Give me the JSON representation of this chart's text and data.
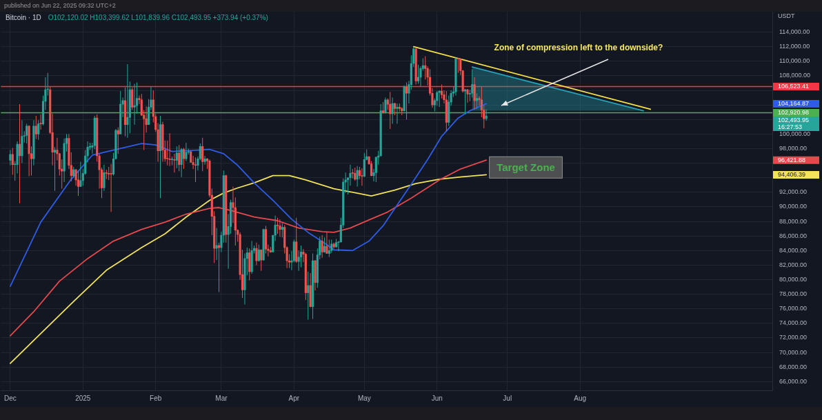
{
  "chart_data": {
    "type": "candlestick",
    "title": "Bitcoin · 1D",
    "subtitle": "O102,120.02 H103,399.62 L101,839.96 C102,493.95 +373.94 (+0.37%)",
    "ylabel": "USDT",
    "annotations": [
      "published on Jun 22, 2025 09:32 UTC+2",
      "Zone of compression left to the downside?",
      "Target Zone",
      "104,164.87",
      "96,421.88",
      "94,406.39",
      "16:27:53"
    ],
    "x": [
      "2024-12-01",
      "2024-12-02",
      "2024-12-03",
      "2024-12-04",
      "2024-12-05",
      "2024-12-06",
      "2024-12-07",
      "2024-12-08",
      "2024-12-09",
      "2024-12-10",
      "2024-12-11",
      "2024-12-12",
      "2024-12-13",
      "2024-12-14",
      "2024-12-15",
      "2024-12-16",
      "2024-12-17",
      "2024-12-18",
      "2024-12-19",
      "2024-12-20",
      "2024-12-21",
      "2024-12-22",
      "2024-12-23",
      "2024-12-24",
      "2024-12-25",
      "2024-12-26",
      "2024-12-27",
      "2024-12-28",
      "2024-12-29",
      "2024-12-30",
      "2024-12-31",
      "2025-01-01",
      "2025-01-02",
      "2025-01-03",
      "2025-01-04",
      "2025-01-05",
      "2025-01-06",
      "2025-01-07",
      "2025-01-08",
      "2025-01-09",
      "2025-01-10",
      "2025-01-11",
      "2025-01-12",
      "2025-01-13",
      "2025-01-14",
      "2025-01-15",
      "2025-01-16",
      "2025-01-17",
      "2025-01-18",
      "2025-01-19",
      "2025-01-20",
      "2025-01-21",
      "2025-01-22",
      "2025-01-23",
      "2025-01-24",
      "2025-01-25",
      "2025-01-26",
      "2025-01-27",
      "2025-01-28",
      "2025-01-29",
      "2025-01-30",
      "2025-01-31",
      "2025-02-01",
      "2025-02-02",
      "2025-02-03",
      "2025-02-04",
      "2025-02-05",
      "2025-02-06",
      "2025-02-07",
      "2025-02-08",
      "2025-02-09",
      "2025-02-10",
      "2025-02-11",
      "2025-02-12",
      "2025-02-13",
      "2025-02-14",
      "2025-02-15",
      "2025-02-16",
      "2025-02-17",
      "2025-02-18",
      "2025-02-19",
      "2025-02-20",
      "2025-02-21",
      "2025-02-22",
      "2025-02-23",
      "2025-02-24",
      "2025-02-25",
      "2025-02-26",
      "2025-02-27",
      "2025-02-28",
      "2025-03-01",
      "2025-03-02",
      "2025-03-03",
      "2025-03-04",
      "2025-03-05",
      "2025-03-06",
      "2025-03-07",
      "2025-03-08",
      "2025-03-09",
      "2025-03-10",
      "2025-03-11",
      "2025-03-12",
      "2025-03-13",
      "2025-03-14",
      "2025-03-15",
      "2025-03-16",
      "2025-03-17",
      "2025-03-18",
      "2025-03-19",
      "2025-03-20",
      "2025-03-21",
      "2025-03-22",
      "2025-03-23",
      "2025-03-24",
      "2025-03-25",
      "2025-03-26",
      "2025-03-27",
      "2025-03-28",
      "2025-03-29",
      "2025-03-30",
      "2025-03-31",
      "2025-04-01",
      "2025-04-02",
      "2025-04-03",
      "2025-04-04",
      "2025-04-05",
      "2025-04-06",
      "2025-04-07",
      "2025-04-08",
      "2025-04-09",
      "2025-04-10",
      "2025-04-11",
      "2025-04-12",
      "2025-04-13",
      "2025-04-14",
      "2025-04-15",
      "2025-04-16",
      "2025-04-17",
      "2025-04-18",
      "2025-04-19",
      "2025-04-20",
      "2025-04-21",
      "2025-04-22",
      "2025-04-23",
      "2025-04-24",
      "2025-04-25",
      "2025-04-26",
      "2025-04-27",
      "2025-04-28",
      "2025-04-29",
      "2025-04-30",
      "2025-05-01",
      "2025-05-02",
      "2025-05-03",
      "2025-05-04",
      "2025-05-05",
      "2025-05-06",
      "2025-05-07",
      "2025-05-08",
      "2025-05-09",
      "2025-05-10",
      "2025-05-11",
      "2025-05-12",
      "2025-05-13",
      "2025-05-14",
      "2025-05-15",
      "2025-05-16",
      "2025-05-17",
      "2025-05-18",
      "2025-05-19",
      "2025-05-20",
      "2025-05-21",
      "2025-05-22",
      "2025-05-23",
      "2025-05-24",
      "2025-05-25",
      "2025-05-26",
      "2025-05-27",
      "2025-05-28",
      "2025-05-29",
      "2025-05-30",
      "2025-05-31",
      "2025-06-01",
      "2025-06-02",
      "2025-06-03",
      "2025-06-04",
      "2025-06-05",
      "2025-06-06",
      "2025-06-07",
      "2025-06-08",
      "2025-06-09",
      "2025-06-10",
      "2025-06-11",
      "2025-06-12",
      "2025-06-13",
      "2025-06-14",
      "2025-06-15",
      "2025-06-16",
      "2025-06-17",
      "2025-06-18",
      "2025-06-19",
      "2025-06-20",
      "2025-06-21",
      "2025-06-22"
    ],
    "ohlc": [
      [
        96400,
        97800,
        95700,
        97200
      ],
      [
        97200,
        98100,
        94400,
        95800
      ],
      [
        95800,
        96300,
        93600,
        95800
      ],
      [
        95800,
        99000,
        94600,
        98600
      ],
      [
        98600,
        104100,
        90500,
        97000
      ],
      [
        97000,
        101900,
        96000,
        99700
      ],
      [
        99700,
        100400,
        98800,
        99800
      ],
      [
        99800,
        101400,
        98700,
        101100
      ],
      [
        101100,
        101200,
        94200,
        97300
      ],
      [
        97300,
        98300,
        94300,
        96600
      ],
      [
        96600,
        101900,
        95700,
        101100
      ],
      [
        101100,
        102500,
        99300,
        100000
      ],
      [
        100000,
        101900,
        99200,
        101400
      ],
      [
        101400,
        102700,
        100600,
        101400
      ],
      [
        101400,
        105300,
        101200,
        104500
      ],
      [
        104500,
        107800,
        103300,
        106100
      ],
      [
        106100,
        108400,
        105300,
        106100
      ],
      [
        106100,
        106500,
        100000,
        100200
      ],
      [
        100200,
        102800,
        95700,
        97500
      ],
      [
        97500,
        98200,
        92200,
        97800
      ],
      [
        97800,
        99500,
        96400,
        97300
      ],
      [
        97300,
        97400,
        94300,
        95200
      ],
      [
        95200,
        96500,
        92500,
        94900
      ],
      [
        94900,
        99400,
        93400,
        98700
      ],
      [
        98700,
        100000,
        97600,
        99400
      ],
      [
        99400,
        100000,
        95200,
        95700
      ],
      [
        95700,
        97500,
        93500,
        94300
      ],
      [
        94300,
        95500,
        94000,
        95100
      ],
      [
        95100,
        95200,
        92900,
        93700
      ],
      [
        93700,
        95000,
        91500,
        92800
      ],
      [
        92800,
        96200,
        92800,
        93600
      ],
      [
        93600,
        95200,
        92900,
        94600
      ],
      [
        94600,
        97800,
        94400,
        97000
      ],
      [
        97000,
        99000,
        96100,
        98200
      ],
      [
        98200,
        98800,
        97800,
        98200
      ],
      [
        98200,
        98800,
        97300,
        98400
      ],
      [
        98400,
        102500,
        97900,
        102200
      ],
      [
        102200,
        102700,
        96200,
        97000
      ],
      [
        97000,
        97300,
        92500,
        95100
      ],
      [
        95100,
        95400,
        91200,
        92600
      ],
      [
        92600,
        95800,
        92200,
        94700
      ],
      [
        94700,
        95100,
        93800,
        94600
      ],
      [
        94600,
        95500,
        93700,
        94500
      ],
      [
        94500,
        95900,
        89300,
        94500
      ],
      [
        94500,
        97400,
        94300,
        96600
      ],
      [
        96600,
        100700,
        96500,
        100500
      ],
      [
        100500,
        100900,
        97300,
        100000
      ],
      [
        100000,
        105900,
        100000,
        104100
      ],
      [
        104100,
        105000,
        102300,
        104600
      ],
      [
        104600,
        106400,
        99700,
        101300
      ],
      [
        101300,
        109600,
        99500,
        102300
      ],
      [
        102300,
        107200,
        100100,
        106100
      ],
      [
        106100,
        106400,
        103300,
        103700
      ],
      [
        103700,
        106900,
        101300,
        103900
      ],
      [
        103900,
        107100,
        102800,
        104900
      ],
      [
        104900,
        105300,
        104100,
        104700
      ],
      [
        104700,
        105500,
        102500,
        102600
      ],
      [
        102600,
        103300,
        97800,
        102100
      ],
      [
        102100,
        103800,
        100200,
        101300
      ],
      [
        101300,
        104800,
        101300,
        103700
      ],
      [
        103700,
        106500,
        103300,
        104700
      ],
      [
        104700,
        106000,
        101600,
        102400
      ],
      [
        102400,
        102800,
        100300,
        100600
      ],
      [
        100600,
        101500,
        96200,
        97700
      ],
      [
        97700,
        102500,
        91200,
        101300
      ],
      [
        101300,
        101700,
        96200,
        97800
      ],
      [
        97800,
        99100,
        96200,
        96600
      ],
      [
        96600,
        99100,
        95700,
        96600
      ],
      [
        96600,
        100100,
        95600,
        96500
      ],
      [
        96500,
        96900,
        95700,
        96500
      ],
      [
        96500,
        97300,
        94700,
        96400
      ],
      [
        96400,
        98300,
        95300,
        97400
      ],
      [
        97400,
        98500,
        94900,
        95800
      ],
      [
        95800,
        98100,
        94100,
        97900
      ],
      [
        97900,
        98100,
        95200,
        96600
      ],
      [
        96600,
        98800,
        96300,
        97500
      ],
      [
        97500,
        98000,
        97200,
        97600
      ],
      [
        97600,
        97700,
        96100,
        96100
      ],
      [
        96100,
        97000,
        95200,
        95800
      ],
      [
        95800,
        96800,
        93400,
        95700
      ],
      [
        95700,
        96900,
        95000,
        96600
      ],
      [
        96600,
        98700,
        96400,
        98300
      ],
      [
        98300,
        99500,
        94900,
        96200
      ],
      [
        96200,
        97000,
        95800,
        96600
      ],
      [
        96600,
        96700,
        95200,
        96300
      ],
      [
        96300,
        96500,
        91300,
        91600
      ],
      [
        91600,
        92500,
        86100,
        88700
      ],
      [
        88700,
        89400,
        82300,
        84300
      ],
      [
        84300,
        87100,
        82700,
        84700
      ],
      [
        84700,
        85100,
        78300,
        84400
      ],
      [
        84400,
        86600,
        83800,
        86100
      ],
      [
        86100,
        95000,
        85100,
        94300
      ],
      [
        94300,
        94400,
        85100,
        86200
      ],
      [
        86200,
        89000,
        81500,
        87300
      ],
      [
        87300,
        91000,
        86300,
        90600
      ],
      [
        90600,
        92800,
        87800,
        89900
      ],
      [
        89900,
        91300,
        84700,
        86800
      ],
      [
        86800,
        86900,
        85200,
        86200
      ],
      [
        86200,
        86500,
        80000,
        80700
      ],
      [
        80700,
        84100,
        77500,
        78600
      ],
      [
        78600,
        83600,
        76600,
        82900
      ],
      [
        82900,
        84400,
        80600,
        83700
      ],
      [
        83700,
        84300,
        79900,
        81100
      ],
      [
        81100,
        85300,
        80800,
        84000
      ],
      [
        84000,
        84700,
        83600,
        84300
      ],
      [
        84300,
        85100,
        82000,
        82600
      ],
      [
        82600,
        84800,
        82500,
        84100
      ],
      [
        84100,
        84100,
        81200,
        82700
      ],
      [
        82700,
        87000,
        82600,
        86900
      ],
      [
        86900,
        87400,
        83600,
        84200
      ],
      [
        84200,
        84800,
        83200,
        84000
      ],
      [
        84000,
        84500,
        83700,
        83800
      ],
      [
        83800,
        86100,
        83800,
        86100
      ],
      [
        86100,
        88800,
        85300,
        87500
      ],
      [
        87500,
        88500,
        86300,
        87400
      ],
      [
        87400,
        88300,
        85900,
        86900
      ],
      [
        86900,
        87800,
        85800,
        87200
      ],
      [
        87200,
        87500,
        83600,
        84400
      ],
      [
        84400,
        84600,
        81600,
        82600
      ],
      [
        82600,
        83500,
        81600,
        82400
      ],
      [
        82400,
        83900,
        81300,
        82600
      ],
      [
        82600,
        85500,
        82400,
        85200
      ],
      [
        85200,
        88500,
        82300,
        82500
      ],
      [
        82500,
        84000,
        81200,
        83100
      ],
      [
        83100,
        84700,
        81700,
        83800
      ],
      [
        83800,
        84200,
        82400,
        83500
      ],
      [
        83500,
        83700,
        77200,
        78200
      ],
      [
        78200,
        81100,
        74500,
        79200
      ],
      [
        79200,
        80900,
        76200,
        76300
      ],
      [
        76300,
        83600,
        74600,
        82600
      ],
      [
        82600,
        82700,
        78500,
        79600
      ],
      [
        79600,
        84300,
        78900,
        83400
      ],
      [
        83400,
        85900,
        82800,
        85300
      ],
      [
        85300,
        86100,
        83000,
        83800
      ],
      [
        83800,
        85800,
        83700,
        84600
      ],
      [
        84600,
        86500,
        83600,
        83600
      ],
      [
        83600,
        85500,
        83100,
        84000
      ],
      [
        84000,
        85500,
        83700,
        84900
      ],
      [
        84900,
        85100,
        84300,
        84500
      ],
      [
        84500,
        85600,
        84400,
        85100
      ],
      [
        85100,
        85300,
        83900,
        85200
      ],
      [
        85200,
        88500,
        85100,
        87500
      ],
      [
        87500,
        93900,
        87100,
        93400
      ],
      [
        93400,
        94700,
        91900,
        93700
      ],
      [
        93700,
        94000,
        91700,
        94000
      ],
      [
        94000,
        95800,
        92900,
        94600
      ],
      [
        94600,
        95200,
        93900,
        94600
      ],
      [
        94600,
        95400,
        93600,
        93800
      ],
      [
        93800,
        95600,
        92800,
        95000
      ],
      [
        95000,
        95500,
        93800,
        94300
      ],
      [
        94300,
        95300,
        92900,
        94200
      ],
      [
        94200,
        97400,
        94100,
        96500
      ],
      [
        96500,
        97900,
        96400,
        96900
      ],
      [
        96900,
        96900,
        95800,
        95900
      ],
      [
        95900,
        96300,
        94200,
        94300
      ],
      [
        94300,
        95200,
        93500,
        94700
      ],
      [
        94700,
        96900,
        93400,
        96800
      ],
      [
        96800,
        97700,
        95800,
        97000
      ],
      [
        97000,
        104100,
        96900,
        103200
      ],
      [
        103200,
        104400,
        102800,
        103000
      ],
      [
        103000,
        105000,
        102800,
        104700
      ],
      [
        104700,
        104900,
        103300,
        104100
      ],
      [
        104100,
        105800,
        100700,
        102800
      ],
      [
        102800,
        105000,
        101400,
        104200
      ],
      [
        104200,
        104300,
        102600,
        103500
      ],
      [
        103500,
        104200,
        101400,
        103700
      ],
      [
        103700,
        104200,
        103100,
        103500
      ],
      [
        103500,
        103700,
        102600,
        103200
      ],
      [
        103200,
        106700,
        103100,
        106500
      ],
      [
        106500,
        107100,
        102000,
        105600
      ],
      [
        105600,
        107300,
        104200,
        106800
      ],
      [
        106800,
        110800,
        106100,
        109700
      ],
      [
        109700,
        112000,
        109200,
        111700
      ],
      [
        111700,
        111800,
        106800,
        107300
      ],
      [
        107300,
        109500,
        106900,
        107800
      ],
      [
        107800,
        109300,
        106600,
        109000
      ],
      [
        109000,
        110400,
        108700,
        109400
      ],
      [
        109400,
        110700,
        107500,
        109000
      ],
      [
        109000,
        109300,
        106700,
        107800
      ],
      [
        107800,
        108900,
        105300,
        105600
      ],
      [
        105600,
        106300,
        103600,
        104000
      ],
      [
        104000,
        104900,
        103100,
        104600
      ],
      [
        104600,
        105900,
        103900,
        105700
      ],
      [
        105700,
        106000,
        103700,
        105900
      ],
      [
        105900,
        106800,
        104900,
        105400
      ],
      [
        105400,
        106000,
        104200,
        104700
      ],
      [
        104700,
        105900,
        100400,
        101600
      ],
      [
        101600,
        105300,
        101100,
        104400
      ],
      [
        104400,
        106000,
        103900,
        105600
      ],
      [
        105600,
        106500,
        105100,
        105800
      ],
      [
        105800,
        110500,
        105300,
        110300
      ],
      [
        110300,
        110400,
        108400,
        110300
      ],
      [
        110300,
        110400,
        108100,
        108700
      ],
      [
        108700,
        108800,
        105700,
        105900
      ],
      [
        105900,
        106200,
        102700,
        106100
      ],
      [
        106100,
        106200,
        104300,
        105500
      ],
      [
        105500,
        106100,
        104500,
        105600
      ],
      [
        105600,
        108900,
        105000,
        106800
      ],
      [
        106800,
        107800,
        103400,
        104600
      ],
      [
        104600,
        105600,
        103500,
        104900
      ],
      [
        104900,
        105200,
        103900,
        104700
      ],
      [
        104700,
        106500,
        102300,
        103300
      ],
      [
        103300,
        104000,
        100800,
        102100
      ],
      [
        102120.02,
        103399.62,
        101839.96,
        102493.95
      ]
    ],
    "colors": [
      "#26a69a",
      "#ef5350",
      "#26a69a",
      "#26a69a",
      "#ef5350",
      "#26a69a",
      "#26a69a",
      "#26a69a",
      "#ef5350",
      "#ef5350",
      "#26a69a",
      "#ef5350",
      "#26a69a",
      "#ef5350",
      "#26a69a",
      "#26a69a",
      "#26a69a",
      "#ef5350",
      "#ef5350",
      "#26a69a",
      "#ef5350",
      "#ef5350",
      "#ef5350",
      "#26a69a",
      "#26a69a",
      "#ef5350",
      "#ef5350",
      "#26a69a",
      "#ef5350",
      "#ef5350",
      "#26a69a",
      "#26a69a",
      "#26a69a",
      "#26a69a",
      "#26a69a",
      "#26a69a",
      "#26a69a",
      "#ef5350",
      "#ef5350",
      "#ef5350",
      "#26a69a",
      "#ef5350",
      "#ef5350",
      "#ef5350",
      "#26a69a",
      "#26a69a",
      "#ef5350",
      "#26a69a",
      "#26a69a",
      "#ef5350",
      "#26a69a",
      "#26a69a",
      "#ef5350",
      "#26a69a",
      "#26a69a",
      "#ef5350",
      "#ef5350",
      "#ef5350",
      "#ef5350",
      "#26a69a",
      "#26a69a",
      "#ef5350",
      "#ef5350",
      "#ef5350",
      "#26a69a",
      "#ef5350",
      "#ef5350",
      "#ef5350",
      "#ef5350",
      "#26a69a",
      "#ef5350",
      "#26a69a",
      "#ef5350",
      "#26a69a",
      "#ef5350",
      "#26a69a",
      "#26a69a",
      "#ef5350",
      "#ef5350",
      "#ef5350",
      "#26a69a",
      "#26a69a",
      "#ef5350",
      "#26a69a",
      "#ef5350",
      "#ef5350",
      "#ef5350",
      "#ef5350",
      "#26a69a",
      "#ef5350",
      "#26a69a",
      "#26a69a",
      "#ef5350",
      "#26a69a",
      "#26a69a",
      "#ef5350",
      "#ef5350",
      "#ef5350",
      "#ef5350",
      "#ef5350",
      "#26a69a",
      "#26a69a",
      "#ef5350",
      "#26a69a",
      "#26a69a",
      "#ef5350",
      "#26a69a",
      "#ef5350",
      "#26a69a",
      "#ef5350",
      "#ef5350",
      "#ef5350",
      "#26a69a",
      "#26a69a",
      "#ef5350",
      "#ef5350",
      "#26a69a",
      "#ef5350",
      "#ef5350",
      "#ef5350",
      "#26a69a",
      "#26a69a",
      "#ef5350",
      "#26a69a",
      "#26a69a",
      "#ef5350",
      "#ef5350",
      "#26a69a",
      "#ef5350",
      "#26a69a",
      "#ef5350",
      "#26a69a",
      "#26a69a",
      "#ef5350",
      "#26a69a",
      "#ef5350",
      "#26a69a",
      "#26a69a",
      "#ef5350",
      "#26a69a",
      "#26a69a",
      "#26a69a",
      "#26a69a",
      "#26a69a",
      "#26a69a",
      "#26a69a",
      "#ef5350",
      "#ef5350",
      "#26a69a",
      "#ef5350",
      "#ef5350",
      "#26a69a",
      "#26a69a",
      "#ef5350",
      "#ef5350",
      "#26a69a",
      "#26a69a",
      "#26a69a",
      "#26a69a",
      "#ef5350",
      "#26a69a",
      "#ef5350",
      "#ef5350",
      "#26a69a",
      "#ef5350",
      "#26a69a",
      "#ef5350",
      "#ef5350",
      "#26a69a",
      "#ef5350",
      "#26a69a",
      "#26a69a",
      "#26a69a",
      "#ef5350",
      "#26a69a",
      "#26a69a",
      "#26a69a",
      "#ef5350",
      "#ef5350",
      "#ef5350",
      "#ef5350",
      "#26a69a",
      "#26a69a",
      "#26a69a",
      "#ef5350",
      "#ef5350",
      "#ef5350",
      "#26a69a",
      "#26a69a",
      "#26a69a",
      "#26a69a",
      "#ef5350",
      "#ef5350",
      "#ef5350",
      "#26a69a",
      "#ef5350",
      "#26a69a",
      "#26a69a",
      "#ef5350",
      "#26a69a",
      "#ef5350",
      "#ef5350",
      "#ef5350",
      "#26a69a"
    ],
    "value_labels": [
      null,
      null,
      null,
      null,
      null,
      null,
      null,
      null,
      null,
      null,
      null,
      null,
      null,
      null,
      null,
      null,
      null,
      null,
      null,
      null,
      null,
      null,
      null,
      null,
      null,
      null,
      null,
      null,
      null,
      null,
      null,
      null,
      null,
      null,
      null,
      null,
      null,
      null,
      null,
      null,
      null,
      null,
      null,
      null,
      null,
      null,
      null,
      null,
      null,
      null,
      null,
      null,
      null,
      null,
      null,
      null,
      null,
      null,
      null,
      null,
      null,
      null,
      null,
      null,
      null,
      null,
      null,
      null,
      null,
      null,
      null,
      null,
      null,
      null,
      null,
      null,
      null,
      null,
      null,
      null,
      null,
      null,
      null,
      null,
      null,
      null,
      null,
      null,
      null,
      null,
      null,
      null,
      null,
      null,
      null,
      null,
      null,
      null,
      null,
      null,
      null,
      null,
      null,
      null,
      null,
      null,
      null,
      null,
      null,
      null,
      null,
      null,
      null,
      null,
      null,
      null,
      null,
      null,
      null,
      null,
      null,
      null,
      null,
      null,
      null,
      null,
      null,
      null,
      null,
      null,
      null,
      null,
      null,
      null,
      null,
      null,
      null,
      null,
      null,
      null,
      null,
      null,
      null,
      null,
      null,
      null,
      null,
      null,
      null,
      null,
      null,
      null,
      null,
      null,
      null,
      null,
      null,
      null,
      null,
      null,
      null,
      null,
      null,
      null,
      null,
      null,
      null,
      null,
      null,
      null,
      null,
      null,
      null,
      null,
      null,
      null,
      null,
      null,
      null,
      null,
      null,
      null,
      null,
      null,
      null,
      null,
      null,
      null,
      null,
      null,
      null,
      null,
      null,
      null,
      null,
      null,
      null,
      null,
      null,
      null,
      null,
      null,
      null,
      "102,493.95"
    ],
    "series": [
      {
        "type": "line",
        "color": "#2f5ce6",
        "x": [
          "2024-12-01",
          "2024-12-14",
          "2024-12-27",
          "2025-01-05",
          "2025-01-14",
          "2025-01-26",
          "2025-02-01",
          "2025-02-08",
          "2025-02-19",
          "2025-02-24",
          "2025-03-02",
          "2025-03-08",
          "2025-03-15",
          "2025-03-23",
          "2025-03-31",
          "2025-04-07",
          "2025-04-15",
          "2025-04-18",
          "2025-04-26",
          "2025-05-03",
          "2025-05-09",
          "2025-05-13",
          "2025-05-21",
          "2025-05-28",
          "2025-06-03",
          "2025-06-10",
          "2025-06-15",
          "2025-06-22"
        ],
        "values": [
          79100,
          87900,
          93800,
          97100,
          97800,
          98700,
          98500,
          97600,
          97800,
          97900,
          97300,
          95700,
          93300,
          90900,
          88300,
          86500,
          84800,
          84100,
          84000,
          85300,
          87400,
          89300,
          93100,
          96500,
          99700,
          102200,
          103200,
          104164.87
        ]
      },
      {
        "type": "line",
        "color": "#e5484d",
        "x": [
          "2024-12-01",
          "2024-12-11",
          "2024-12-22",
          "2025-01-03",
          "2025-01-14",
          "2025-01-26",
          "2025-02-05",
          "2025-02-14",
          "2025-02-24",
          "2025-02-28",
          "2025-03-05",
          "2025-03-15",
          "2025-03-25",
          "2025-04-03",
          "2025-04-13",
          "2025-04-18",
          "2025-04-25",
          "2025-05-03",
          "2025-05-11",
          "2025-05-21",
          "2025-06-02",
          "2025-06-11",
          "2025-06-22"
        ],
        "values": [
          72300,
          75600,
          79800,
          82900,
          85300,
          86900,
          87900,
          89000,
          89800,
          89900,
          89500,
          88600,
          88100,
          87100,
          86600,
          86500,
          87100,
          88200,
          89300,
          91200,
          93700,
          95200,
          96421.88
        ]
      },
      {
        "type": "line",
        "color": "#f2e35a",
        "x": [
          "2024-12-01",
          "2024-12-14",
          "2024-12-28",
          "2025-01-11",
          "2025-01-26",
          "2025-02-05",
          "2025-02-14",
          "2025-02-24",
          "2025-03-02",
          "2025-03-08",
          "2025-03-15",
          "2025-03-23",
          "2025-03-30",
          "2025-04-06",
          "2025-04-18",
          "2025-05-04",
          "2025-05-14",
          "2025-05-23",
          "2025-06-02",
          "2025-06-11",
          "2025-06-22"
        ],
        "values": [
          68500,
          72600,
          77000,
          81300,
          84400,
          86300,
          88600,
          90900,
          91900,
          92600,
          93300,
          94300,
          94300,
          93700,
          92500,
          91500,
          92300,
          93200,
          93800,
          94100,
          94406.39
        ]
      },
      {
        "type": "line",
        "color": "#f5e04b",
        "x": [
          "2025-05-22",
          "2025-08-31"
        ],
        "values": [
          112000,
          103400
        ]
      },
      {
        "type": "line",
        "color": "#26a0b2",
        "x": [
          "2025-06-16",
          "2025-08-28"
        ],
        "values": [
          109200,
          103200
        ],
        "lower": [
          103200,
          103200
        ],
        "upper": [
          109200,
          103200
        ]
      }
    ],
    "ref_lines": [
      {
        "axis": "y",
        "value": 106523.41,
        "label": "106,523.41",
        "color": "#f23645"
      },
      {
        "axis": "y",
        "value": 102920.98,
        "label": "102,920.98",
        "color": "#4caf50"
      }
    ],
    "xlim": [
      "2024-11-27",
      "2025-10-22"
    ],
    "xticks": [
      {
        "value": "2024-12-01",
        "label": "Dec"
      },
      {
        "value": "2025-01-01",
        "label": "2025"
      },
      {
        "value": "2025-02-01",
        "label": "Feb"
      },
      {
        "value": "2025-03-01",
        "label": "Mar"
      },
      {
        "value": "2025-04-01",
        "label": "Apr"
      },
      {
        "value": "2025-05-01",
        "label": "May"
      },
      {
        "value": "2025-06-01",
        "label": "Jun"
      },
      {
        "value": "2025-07-01",
        "label": "Jul"
      },
      {
        "value": "2025-08-01",
        "label": "Aug"
      }
    ],
    "ylim": [
      64800,
      116800
    ],
    "yticks": [
      {
        "value": 66000,
        "label": "66,000.00"
      },
      {
        "value": 68000,
        "label": "68,000.00"
      },
      {
        "value": 70000,
        "label": "70,000.00"
      },
      {
        "value": 72000,
        "label": "72,000.00"
      },
      {
        "value": 74000,
        "label": "74,000.00"
      },
      {
        "value": 76000,
        "label": "76,000.00"
      },
      {
        "value": 78000,
        "label": "78,000.00"
      },
      {
        "value": 80000,
        "label": "80,000.00"
      },
      {
        "value": 82000,
        "label": "82,000.00"
      },
      {
        "value": 84000,
        "label": "84,000.00"
      },
      {
        "value": 86000,
        "label": "86,000.00"
      },
      {
        "value": 88000,
        "label": "88,000.00"
      },
      {
        "value": 90000,
        "label": "90,000.00"
      },
      {
        "value": 92000,
        "label": "92,000.00"
      },
      {
        "value": 94000,
        "label": null
      },
      {
        "value": 96000,
        "label": null
      },
      {
        "value": 98000,
        "label": "98,000.00"
      },
      {
        "value": 100000,
        "label": "100,000.00"
      },
      {
        "value": 102000,
        "label": null
      },
      {
        "value": 104000,
        "label": null
      },
      {
        "value": 106000,
        "label": null
      },
      {
        "value": 108000,
        "label": "108,000.00"
      },
      {
        "value": 110000,
        "label": "110,000.00"
      },
      {
        "value": 112000,
        "label": "112,000.00"
      },
      {
        "value": 114000,
        "label": "114,000.00"
      }
    ],
    "grid": true,
    "legend": false
  }
}
